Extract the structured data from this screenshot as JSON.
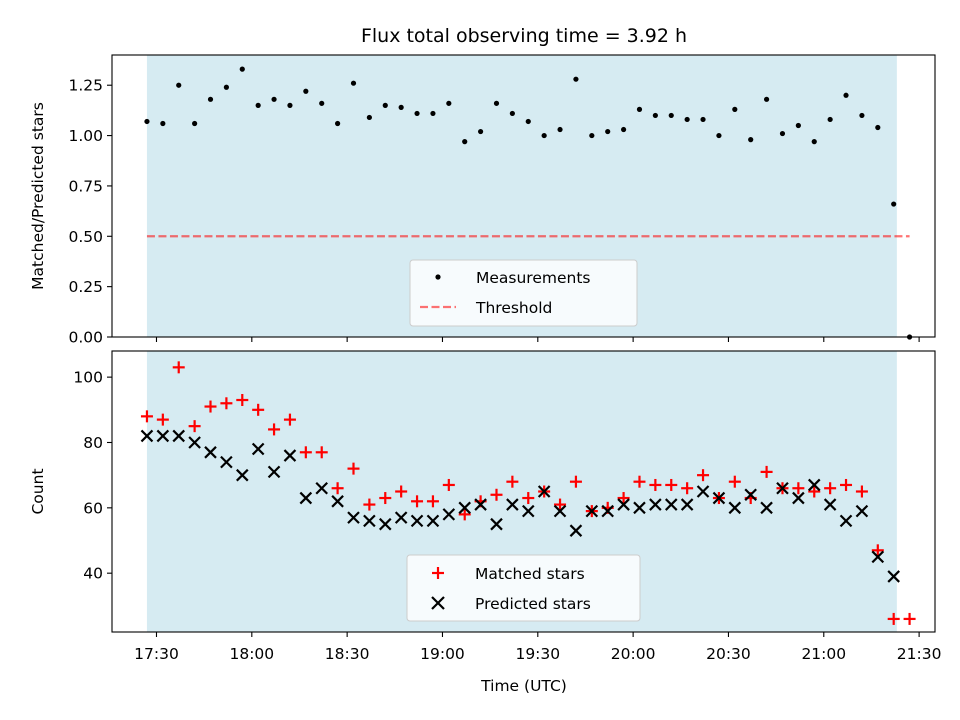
{
  "title": "Flux total observing time = 3.92 h",
  "colors": {
    "shade": "#add8e6",
    "measurement": "#000000",
    "threshold": "#ff0000",
    "matched": "#ff0000",
    "predicted": "#000000"
  },
  "chart_data": [
    {
      "type": "scatter",
      "ylabel": "Matched/Predicted stars",
      "ylim": [
        0,
        1.4
      ],
      "yticks": [
        "0.00",
        "0.25",
        "0.50",
        "0.75",
        "1.00",
        "1.25"
      ],
      "legend": {
        "placement": "lower-center",
        "entries": [
          "Measurements",
          "Threshold"
        ]
      },
      "threshold": 0.5,
      "shaded_span": [
        "17:27",
        "21:23"
      ],
      "series": [
        {
          "name": "Measurements",
          "x": [
            "17:27",
            "17:32",
            "17:37",
            "17:42",
            "17:47",
            "17:52",
            "17:57",
            "18:02",
            "18:07",
            "18:12",
            "18:17",
            "18:22",
            "18:27",
            "18:32",
            "18:37",
            "18:42",
            "18:47",
            "18:52",
            "18:57",
            "19:02",
            "19:07",
            "19:12",
            "19:17",
            "19:22",
            "19:27",
            "19:32",
            "19:37",
            "19:42",
            "19:47",
            "19:52",
            "19:57",
            "20:02",
            "20:07",
            "20:12",
            "20:17",
            "20:22",
            "20:27",
            "20:32",
            "20:37",
            "20:42",
            "20:47",
            "20:52",
            "20:57",
            "21:02",
            "21:07",
            "21:12",
            "21:17",
            "21:22",
            "21:27"
          ],
          "y": [
            1.07,
            1.06,
            1.25,
            1.06,
            1.18,
            1.24,
            1.33,
            1.15,
            1.18,
            1.15,
            1.22,
            1.16,
            1.06,
            1.26,
            1.09,
            1.15,
            1.14,
            1.11,
            1.11,
            1.16,
            0.97,
            1.02,
            1.16,
            1.11,
            1.07,
            1.0,
            1.03,
            1.28,
            1.0,
            1.02,
            1.03,
            1.13,
            1.1,
            1.1,
            1.08,
            1.08,
            1.0,
            1.13,
            0.98,
            1.18,
            1.01,
            1.05,
            0.97,
            1.08,
            1.2,
            1.1,
            1.04,
            0.66,
            0.0
          ]
        }
      ]
    },
    {
      "type": "scatter",
      "xlabel": "Time (UTC)",
      "ylabel": "Count",
      "ylim": [
        22,
        108
      ],
      "yticks": [
        "40",
        "60",
        "80",
        "100"
      ],
      "xlim": [
        "17:16",
        "21:35"
      ],
      "xticks": [
        "17:30",
        "18:00",
        "18:30",
        "19:00",
        "19:30",
        "20:00",
        "20:30",
        "21:00",
        "21:30"
      ],
      "legend": {
        "placement": "lower-center",
        "entries": [
          "Matched stars",
          "Predicted stars"
        ]
      },
      "shaded_span": [
        "17:27",
        "21:23"
      ],
      "series": [
        {
          "name": "Matched stars",
          "x": [
            "17:27",
            "17:32",
            "17:37",
            "17:42",
            "17:47",
            "17:52",
            "17:57",
            "18:02",
            "18:07",
            "18:12",
            "18:17",
            "18:22",
            "18:27",
            "18:32",
            "18:37",
            "18:42",
            "18:47",
            "18:52",
            "18:57",
            "19:02",
            "19:07",
            "19:12",
            "19:17",
            "19:22",
            "19:27",
            "19:32",
            "19:37",
            "19:42",
            "19:47",
            "19:52",
            "19:57",
            "20:02",
            "20:07",
            "20:12",
            "20:17",
            "20:22",
            "20:27",
            "20:32",
            "20:37",
            "20:42",
            "20:47",
            "20:52",
            "20:57",
            "21:02",
            "21:07",
            "21:12",
            "21:17",
            "21:22",
            "21:27"
          ],
          "y": [
            88,
            87,
            103,
            85,
            91,
            92,
            93,
            90,
            84,
            87,
            77,
            77,
            66,
            72,
            61,
            63,
            65,
            62,
            62,
            67,
            58,
            62,
            64,
            68,
            63,
            65,
            61,
            68,
            59,
            60,
            63,
            68,
            67,
            67,
            66,
            70,
            63,
            68,
            63,
            71,
            66,
            66,
            65,
            66,
            67,
            65,
            47,
            26,
            26
          ]
        },
        {
          "name": "Predicted stars",
          "x": [
            "17:27",
            "17:32",
            "17:37",
            "17:42",
            "17:47",
            "17:52",
            "17:57",
            "18:02",
            "18:07",
            "18:12",
            "18:17",
            "18:22",
            "18:27",
            "18:32",
            "18:37",
            "18:42",
            "18:47",
            "18:52",
            "18:57",
            "19:02",
            "19:07",
            "19:12",
            "19:17",
            "19:22",
            "19:27",
            "19:32",
            "19:37",
            "19:42",
            "19:47",
            "19:52",
            "19:57",
            "20:02",
            "20:07",
            "20:12",
            "20:17",
            "20:22",
            "20:27",
            "20:32",
            "20:37",
            "20:42",
            "20:47",
            "20:52",
            "20:57",
            "21:02",
            "21:07",
            "21:12",
            "21:17",
            "21:22",
            "21:27"
          ],
          "y": [
            82,
            82,
            82,
            80,
            77,
            74,
            70,
            78,
            71,
            76,
            63,
            66,
            62,
            57,
            56,
            55,
            57,
            56,
            56,
            58,
            60,
            61,
            55,
            61,
            59,
            65,
            59,
            53,
            59,
            59,
            61,
            60,
            61,
            61,
            61,
            65,
            63,
            60,
            64,
            60,
            66,
            63,
            67,
            61,
            56,
            59,
            45,
            39,
            null
          ]
        }
      ]
    }
  ]
}
